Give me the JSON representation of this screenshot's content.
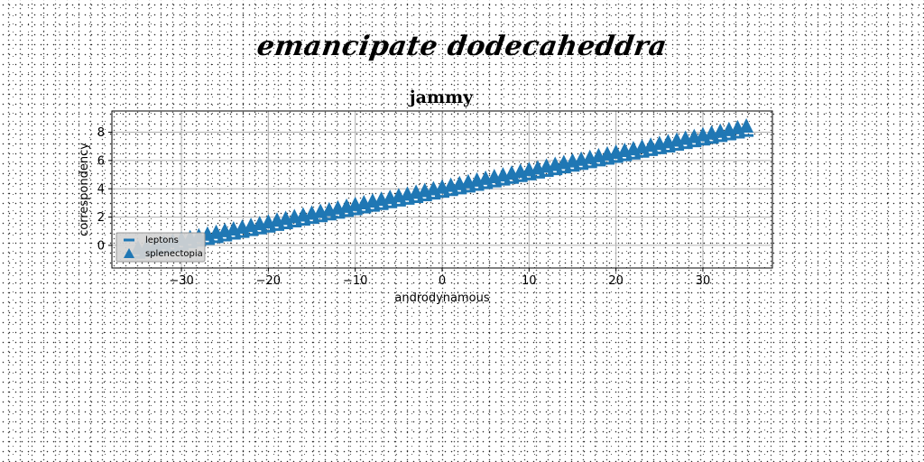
{
  "suptitle": "emancipate dodecaheddra",
  "chart_data": {
    "type": "scatter",
    "title": "jammy",
    "xlabel": "androdynamous",
    "ylabel": "correspondency",
    "xlim": [
      -38,
      38
    ],
    "ylim": [
      -1.6,
      9.5
    ],
    "xticks": [
      -30,
      -20,
      -10,
      0,
      10,
      20,
      30
    ],
    "yticks": [
      0,
      2,
      4,
      6,
      8
    ],
    "grid": true,
    "legend_position": "lower-left",
    "series": [
      {
        "name": "leptons",
        "marker": "underscore",
        "color": "#1f77b4",
        "x_start": -35,
        "x_step": 1,
        "count": 71,
        "slope": 0.1232,
        "intercept": 3.46
      },
      {
        "name": "splenectopia",
        "marker": "triangle",
        "color": "#1f77b4",
        "x_start": -35,
        "x_step": 1,
        "count": 71,
        "slope": 0.1232,
        "intercept": 4.04
      }
    ]
  }
}
